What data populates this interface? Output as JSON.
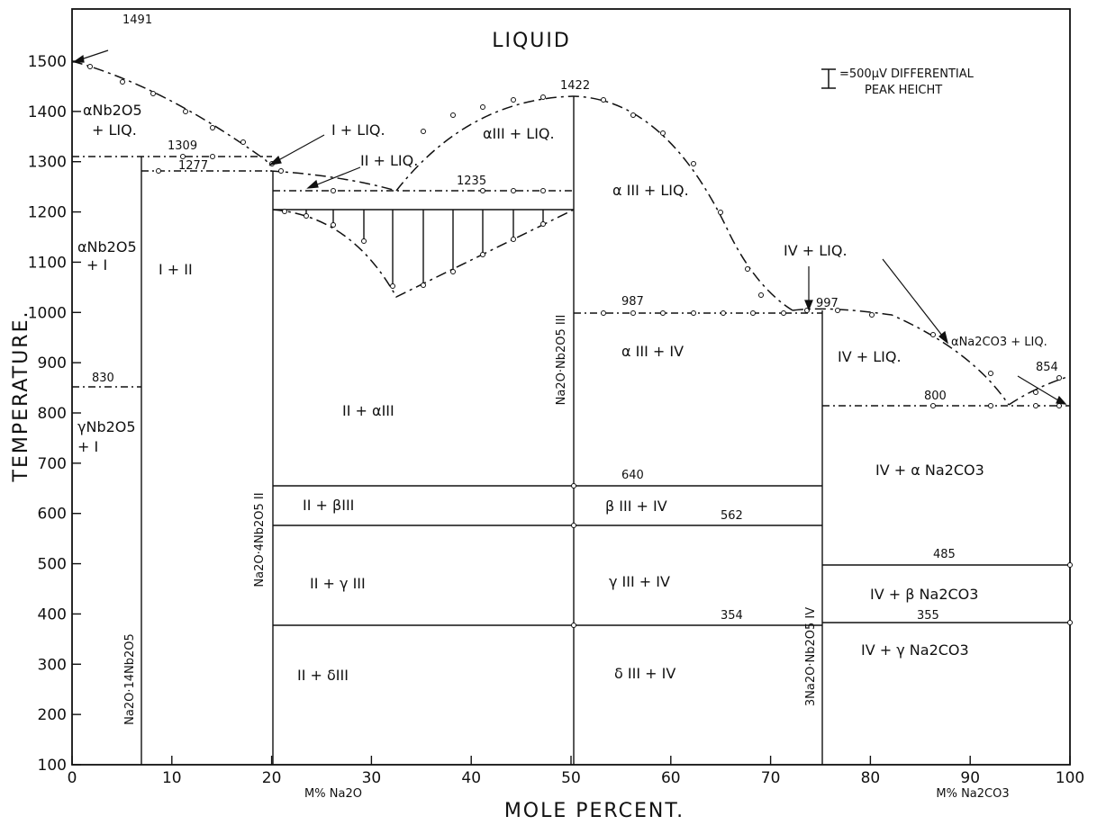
{
  "title": "LIQUID",
  "legend_note": {
    "line1": "=500μV DIFFERENTIAL",
    "line2": "PEAK HEICHT"
  },
  "x_axis": {
    "title": "MOLE PERCENT.",
    "left_sub": "M% Na2O",
    "right_sub": "M% Na2CO3",
    "ticks": [
      "0",
      "10",
      "20",
      "30",
      "40",
      "50",
      "60",
      "70",
      "80",
      "90",
      "100"
    ]
  },
  "y_axis": {
    "title": "TEMPERATURE.",
    "ticks": [
      "1500",
      "1400",
      "1300",
      "1200",
      "1100",
      "1000",
      "900",
      "800",
      "700",
      "600",
      "500",
      "400",
      "300",
      "200",
      "100"
    ]
  },
  "compounds": [
    {
      "label": "Na2O·14Nb2O5",
      "x": 6.7
    },
    {
      "label": "Na2O·4Nb2O5 II",
      "x": 20
    },
    {
      "label": "Na2O·Nb2O5 III",
      "x": 50
    },
    {
      "label": "3Na2O·Nb2O5 IV",
      "x": 75
    }
  ],
  "temperatures": [
    "1491",
    "1309",
    "1277",
    "1235",
    "1422",
    "987",
    "997",
    "854",
    "830",
    "800",
    "640",
    "562",
    "485",
    "354",
    "355"
  ],
  "phase_labels": {
    "anb_liq_1": "αNb2O5",
    "anb_liq_2": "+ LIQ.",
    "i_liq": "I + LIQ.",
    "ii_liq": "II + LIQ.",
    "aiii_liq_top": "αIII + LIQ.",
    "aiii_liq_mid": "α III + LIQ.",
    "anb_i_1": "αNb2O5",
    "anb_i_2": "+ I",
    "i_ii": "I + II",
    "gnb_i_1": "γNb2O5",
    "gnb_i_2": "+ I",
    "ii_aiii": "II + αIII",
    "ii_biii": "II + βIII",
    "ii_giii": "II + γ III",
    "ii_diii": "II + δIII",
    "aiii_iv": "α III + IV",
    "biii_iv": "β III + IV",
    "giii_iv": "γ III + IV",
    "diii_iv": "δ III + IV",
    "iv_liq_top": "IV + LIQ.",
    "iv_liq": "IV + LIQ.",
    "anc_liq": "αNa2CO3 + LIQ.",
    "iv_anc": "IV + α Na2CO3",
    "iv_bnc": "IV + β Na2CO3",
    "iv_gnc": "IV + γ Na2CO3"
  }
}
